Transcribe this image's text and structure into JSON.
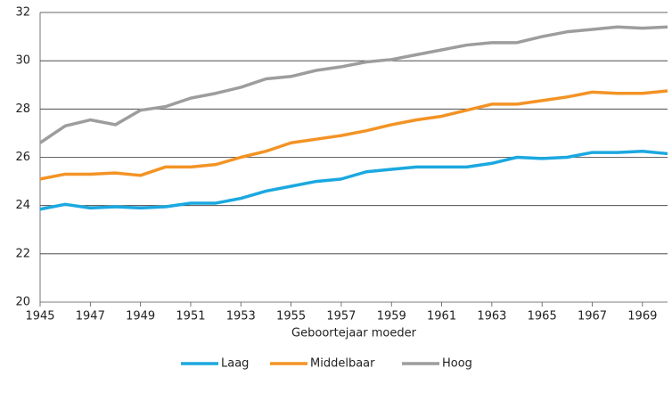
{
  "chart_data": {
    "type": "line",
    "x_label": "Geboortejaar moeder",
    "x": [
      1945,
      1946,
      1947,
      1948,
      1949,
      1950,
      1951,
      1952,
      1953,
      1954,
      1955,
      1956,
      1957,
      1958,
      1959,
      1960,
      1961,
      1962,
      1963,
      1964,
      1965,
      1966,
      1967,
      1968,
      1969,
      1970
    ],
    "series": [
      {
        "name": "Laag",
        "color": "#1ba8e0",
        "values": [
          23.85,
          24.05,
          23.9,
          23.95,
          23.9,
          23.95,
          24.1,
          24.1,
          24.3,
          24.6,
          24.8,
          25.0,
          25.1,
          25.4,
          25.5,
          25.6,
          25.6,
          25.6,
          25.75,
          26.0,
          25.95,
          26.0,
          26.2,
          26.2,
          26.25,
          26.15
        ]
      },
      {
        "name": "Middelbaar",
        "color": "#f39325",
        "values": [
          25.1,
          25.3,
          25.3,
          25.35,
          25.25,
          25.6,
          25.6,
          25.7,
          26.0,
          26.25,
          26.6,
          26.75,
          26.9,
          27.1,
          27.35,
          27.55,
          27.7,
          27.95,
          28.2,
          28.2,
          28.35,
          28.5,
          28.7,
          28.65,
          28.65,
          28.75
        ]
      },
      {
        "name": "Hoog",
        "color": "#9d9d9d",
        "values": [
          26.6,
          27.3,
          27.55,
          27.35,
          27.95,
          28.1,
          28.45,
          28.65,
          28.9,
          29.25,
          29.35,
          29.6,
          29.75,
          29.95,
          30.05,
          30.25,
          30.45,
          30.65,
          30.75,
          30.75,
          31.0,
          31.2,
          31.3,
          31.4,
          31.35,
          31.4
        ]
      }
    ],
    "xlim": [
      1945,
      1970
    ],
    "xticks": [
      1945,
      1947,
      1949,
      1951,
      1953,
      1955,
      1957,
      1959,
      1961,
      1963,
      1965,
      1967,
      1969
    ],
    "ylim": [
      20,
      32
    ],
    "yticks": [
      20,
      22,
      24,
      26,
      28,
      30,
      32
    ],
    "grid": true,
    "legend": "bottom"
  }
}
